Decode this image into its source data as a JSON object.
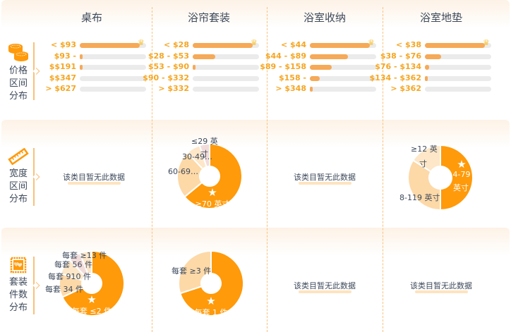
{
  "columns": [
    "桌布",
    "浴帘套装",
    "浴室收纳",
    "浴室地垫"
  ],
  "rows": {
    "price": {
      "label": [
        "价格",
        "区间",
        "分布"
      ],
      "icon": "coins-icon"
    },
    "width": {
      "label": [
        "宽度",
        "区间",
        "分布"
      ],
      "icon": "ruler-icon"
    },
    "set": {
      "label": [
        "套装",
        "件数",
        "分布"
      ],
      "icon": "hearts-stamp-icon"
    }
  },
  "no_data_text": "该类目暂无此数据",
  "colors": {
    "accent": "#ff9a0a",
    "bar": "#f6a956",
    "track": "#ebebeb",
    "light1": "#fdd9a8",
    "light2": "#fde7c8",
    "light3": "#f2dcd9",
    "text": "#3e4a5b",
    "price_text": "#f5a623"
  },
  "chart_data": [
    {
      "type": "bar",
      "title": "价格区间分布 - 桌布",
      "categories": [
        "< $93",
        "$93 - $191",
        "$191 - $347",
        "$347 - $627",
        "> $627"
      ],
      "display_labels": [
        "< $93",
        "$93 -",
        "$$191",
        "$$347",
        "> $627"
      ],
      "values": [
        100,
        5,
        2,
        0,
        0
      ],
      "top": 0
    },
    {
      "type": "bar",
      "title": "价格区间分布 - 浴帘套装",
      "categories": [
        "< $28",
        "$28 - $53",
        "$53 - $90",
        "$90 - $332",
        "> $332"
      ],
      "display_labels": [
        "< $28",
        "$28 - $53",
        "$53 - $90",
        "$90 - $332",
        "> $332"
      ],
      "values": [
        100,
        38,
        3,
        0,
        0
      ],
      "top": 0
    },
    {
      "type": "bar",
      "title": "价格区间分布 - 浴室收纳",
      "categories": [
        "< $44",
        "$44 - $89",
        "$89 - $158",
        "$158 - $348",
        "> $348"
      ],
      "display_labels": [
        "< $44",
        "$44 - $89",
        "$89 - $158",
        "$158 -",
        "> $348"
      ],
      "values": [
        100,
        64,
        37,
        17,
        3
      ],
      "top": 0
    },
    {
      "type": "bar",
      "title": "价格区间分布 - 浴室地垫",
      "categories": [
        "< $38",
        "$38 - $76",
        "$76 - $134",
        "$134 - $362",
        "> $362"
      ],
      "display_labels": [
        "< $38",
        "$38 - $76",
        "$76 - $134",
        "$134 - $362",
        "> $362"
      ],
      "values": [
        100,
        27,
        7,
        4,
        0
      ],
      "top": 0
    },
    {
      "type": "pie",
      "title": "宽度区间分布 - 浴帘套装",
      "categories": [
        "≥70 英寸",
        "60-69…",
        "30-49…",
        "≤29 英寸"
      ],
      "values": [
        64,
        24,
        7,
        5
      ],
      "top": "≥70 英寸"
    },
    {
      "type": "pie",
      "title": "宽度区间分布 - 浴室地垫",
      "categories": [
        "4-79 英寸",
        "8-119 英寸",
        "≥12 英寸"
      ],
      "values": [
        50,
        34,
        16
      ],
      "top": "4-79 英寸"
    },
    {
      "type": "pie",
      "title": "套装件数分布 - 桌布",
      "categories": [
        "每套 ≤2 件",
        "每套 34 件",
        "每套 910 件",
        "每套 56 件",
        "每套 ≥13 件"
      ],
      "values": [
        68,
        12,
        8,
        6,
        6
      ],
      "top": "每套 ≤2 件"
    },
    {
      "type": "pie",
      "title": "套装件数分布 - 浴帘套装",
      "categories": [
        "每套 1 件",
        "每套 ≥3 件"
      ],
      "values": [
        70,
        30
      ],
      "top": "每套 1 件"
    }
  ]
}
